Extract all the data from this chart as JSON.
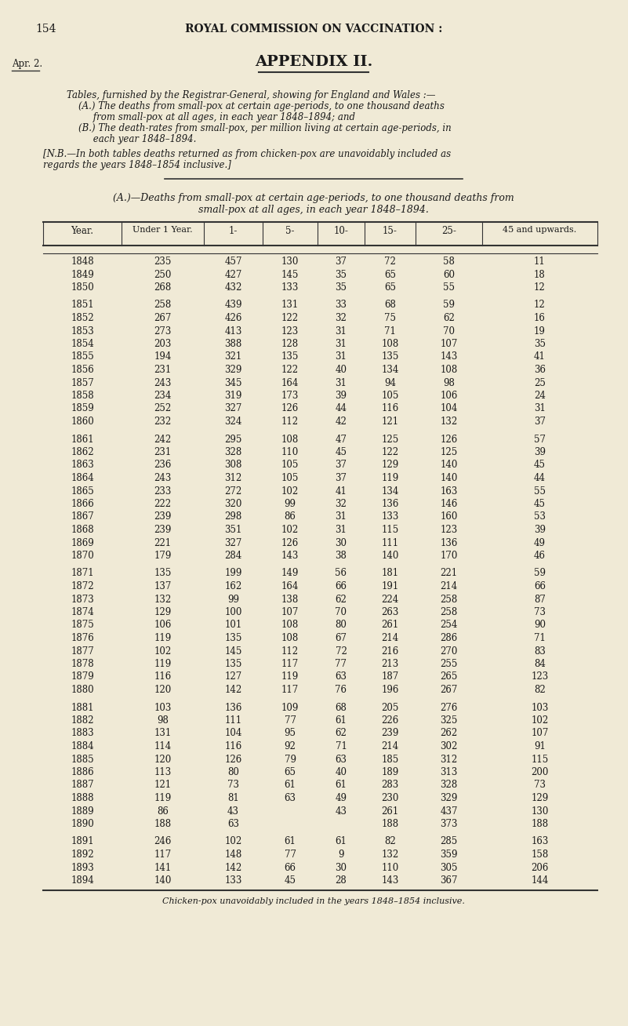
{
  "page_num": "154",
  "header": "ROYAL COMMISSION ON VACCINATION :",
  "margin_label": "Apr. 2.",
  "appendix_title": "APPENDIX II.",
  "intro_text": [
    "Tables, furnished by the Registrar-General, showing for England and Wales :—",
    "    (A.) The deaths from small-pox at certain age-periods, to one thousand deaths",
    "         from small-pox at all ages, in each year 1848–1894; and",
    "    (B.) The death-rates from small-pox, per million living at certain age-periods, in",
    "         each year 1848–1894."
  ],
  "nb_text": "[N.B.—In both tables deaths returned as from chicken-pox are unavoidably included as\nregards the years 1848–1854 inclusive.]",
  "table_title_line1": "(A.)—Deaths from small-pox at certain age-periods, to one thousand deaths from",
  "table_title_line2": "small-pox at all ages, in each year 1848–1894.",
  "col_headers": [
    "Year.",
    "Under 1 Year.",
    "1-",
    "5-",
    "10-",
    "15-",
    "25-",
    "45 and upwards."
  ],
  "table_data": [
    [
      "1848",
      "235",
      "457",
      "130",
      "37",
      "72",
      "58",
      "11"
    ],
    [
      "1849",
      "250",
      "427",
      "145",
      "35",
      "65",
      "60",
      "18"
    ],
    [
      "1850",
      "268",
      "432",
      "133",
      "35",
      "65",
      "55",
      "12"
    ],
    [
      "",
      "",
      "",
      "",
      "",
      "",
      "",
      ""
    ],
    [
      "1851",
      "258",
      "439",
      "131",
      "33",
      "68",
      "59",
      "12"
    ],
    [
      "1852",
      "267",
      "426",
      "122",
      "32",
      "75",
      "62",
      "16"
    ],
    [
      "1853",
      "273",
      "413",
      "123",
      "31",
      "71",
      "70",
      "19"
    ],
    [
      "1854",
      "203",
      "388",
      "128",
      "31",
      "108",
      "107",
      "35"
    ],
    [
      "1855",
      "194",
      "321",
      "135",
      "31",
      "135",
      "143",
      "41"
    ],
    [
      "1856",
      "231",
      "329",
      "122",
      "40",
      "134",
      "108",
      "36"
    ],
    [
      "1857",
      "243",
      "345",
      "164",
      "31",
      "94",
      "98",
      "25"
    ],
    [
      "1858",
      "234",
      "319",
      "173",
      "39",
      "105",
      "106",
      "24"
    ],
    [
      "1859",
      "252",
      "327",
      "126",
      "44",
      "116",
      "104",
      "31"
    ],
    [
      "1860",
      "232",
      "324",
      "112",
      "42",
      "121",
      "132",
      "37"
    ],
    [
      "",
      "",
      "",
      "",
      "",
      "",
      "",
      ""
    ],
    [
      "1861",
      "242",
      "295",
      "108",
      "47",
      "125",
      "126",
      "57"
    ],
    [
      "1862",
      "231",
      "328",
      "110",
      "45",
      "122",
      "125",
      "39"
    ],
    [
      "1863",
      "236",
      "308",
      "105",
      "37",
      "129",
      "140",
      "45"
    ],
    [
      "1864",
      "243",
      "312",
      "105",
      "37",
      "119",
      "140",
      "44"
    ],
    [
      "1865",
      "233",
      "272",
      "102",
      "41",
      "134",
      "163",
      "55"
    ],
    [
      "1866",
      "222",
      "320",
      "99",
      "32",
      "136",
      "146",
      "45"
    ],
    [
      "1867",
      "239",
      "298",
      "86",
      "31",
      "133",
      "160",
      "53"
    ],
    [
      "1868",
      "239",
      "351",
      "102",
      "31",
      "115",
      "123",
      "39"
    ],
    [
      "1869",
      "221",
      "327",
      "126",
      "30",
      "111",
      "136",
      "49"
    ],
    [
      "1870",
      "179",
      "284",
      "143",
      "38",
      "140",
      "170",
      "46"
    ],
    [
      "",
      "",
      "",
      "",
      "",
      "",
      "",
      ""
    ],
    [
      "1871",
      "135",
      "199",
      "149",
      "56",
      "181",
      "221",
      "59"
    ],
    [
      "1872",
      "137",
      "162",
      "164",
      "66",
      "191",
      "214",
      "66"
    ],
    [
      "1873",
      "132",
      "99",
      "138",
      "62",
      "224",
      "258",
      "87"
    ],
    [
      "1874",
      "129",
      "100",
      "107",
      "70",
      "263",
      "258",
      "73"
    ],
    [
      "1875",
      "106",
      "101",
      "108",
      "80",
      "261",
      "254",
      "90"
    ],
    [
      "1876",
      "119",
      "135",
      "108",
      "67",
      "214",
      "286",
      "71"
    ],
    [
      "1877",
      "102",
      "145",
      "112",
      "72",
      "216",
      "270",
      "83"
    ],
    [
      "1878",
      "119",
      "135",
      "117",
      "77",
      "213",
      "255",
      "84"
    ],
    [
      "1879",
      "116",
      "127",
      "119",
      "63",
      "187",
      "265",
      "123"
    ],
    [
      "1880",
      "120",
      "142",
      "117",
      "76",
      "196",
      "267",
      "82"
    ],
    [
      "",
      "",
      "",
      "",
      "",
      "",
      "",
      ""
    ],
    [
      "1881",
      "103",
      "136",
      "109",
      "68",
      "205",
      "276",
      "103"
    ],
    [
      "1882",
      "98",
      "111",
      "77",
      "61",
      "226",
      "325",
      "102"
    ],
    [
      "1883",
      "131",
      "104",
      "95",
      "62",
      "239",
      "262",
      "107"
    ],
    [
      "1884",
      "114",
      "116",
      "92",
      "71",
      "214",
      "302",
      "91"
    ],
    [
      "1885",
      "120",
      "126",
      "79",
      "63",
      "185",
      "312",
      "115"
    ],
    [
      "1886",
      "113",
      "80",
      "65",
      "40",
      "189",
      "313",
      "200"
    ],
    [
      "1887",
      "121",
      "73",
      "61",
      "61",
      "283",
      "328",
      "73"
    ],
    [
      "1888",
      "119",
      "81",
      "63",
      "49",
      "230",
      "329",
      "129"
    ],
    [
      "1889",
      "86",
      "43",
      "",
      "43",
      "261",
      "437",
      "130"
    ],
    [
      "1890",
      "188",
      "63",
      "",
      "",
      "188",
      "373",
      "188"
    ],
    [
      "",
      "",
      "",
      "",
      "",
      "",
      "",
      ""
    ],
    [
      "1891",
      "246",
      "102",
      "61",
      "61",
      "82",
      "285",
      "163"
    ],
    [
      "1892",
      "117",
      "148",
      "77",
      "9",
      "132",
      "359",
      "158"
    ],
    [
      "1893",
      "141",
      "142",
      "66",
      "30",
      "110",
      "305",
      "206"
    ],
    [
      "1894",
      "140",
      "133",
      "45",
      "28",
      "143",
      "367",
      "144"
    ]
  ],
  "footnote": "Chicken-pox unavoidably included in the years 1848–1854 inclusive.",
  "bg_color": "#f0ead6",
  "text_color": "#1a1a1a",
  "line_color": "#333333"
}
